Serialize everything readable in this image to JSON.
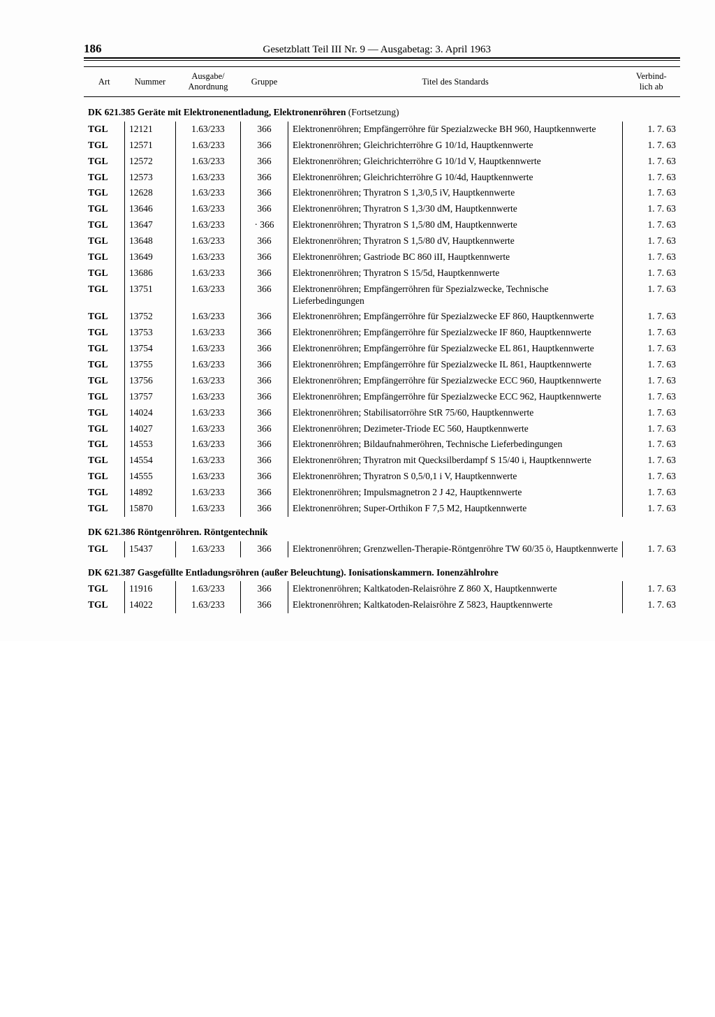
{
  "page_number": "186",
  "page_title": "Gesetzblatt Teil III Nr. 9 — Ausgabetag: 3. April 1963",
  "columns": {
    "art": "Art",
    "nummer": "Nummer",
    "ausgabe": "Ausgabe/\nAnordnung",
    "gruppe": "Gruppe",
    "titel": "Titel des Standards",
    "verbindlich": "Verbind-\nlich ab"
  },
  "sections": [
    {
      "heading": "DK 621.385 Geräte mit Elektronenentladung, Elektronenröhren",
      "continuation": "(Fortsetzung)",
      "rows": [
        {
          "art": "TGL",
          "num": "12121",
          "aus": "1.63/233",
          "grp": "366",
          "title": "Elektronenröhren; Empfängerröhre für Spezialzwecke BH 960, Hauptkennwerte",
          "date": "1.  7. 63"
        },
        {
          "art": "TGL",
          "num": "12571",
          "aus": "1.63/233",
          "grp": "366",
          "title": "Elektronenröhren; Gleichrichterröhre G 10/1d, Hauptkennwerte",
          "date": "1.  7. 63"
        },
        {
          "art": "TGL",
          "num": "12572",
          "aus": "1.63/233",
          "grp": "366",
          "title": "Elektronenröhren; Gleichrichterröhre G 10/1d V, Hauptkennwerte",
          "date": "1.  7. 63"
        },
        {
          "art": "TGL",
          "num": "12573",
          "aus": "1.63/233",
          "grp": "366",
          "title": "Elektronenröhren; Gleichrichterröhre G 10/4d, Hauptkennwerte",
          "date": "1.  7. 63"
        },
        {
          "art": "TGL",
          "num": "12628",
          "aus": "1.63/233",
          "grp": "366",
          "title": "Elektronenröhren; Thyratron S 1,3/0,5 iV, Hauptkennwerte",
          "date": "1.  7. 63"
        },
        {
          "art": "TGL",
          "num": "13646",
          "aus": "1.63/233",
          "grp": "366",
          "title": "Elektronenröhren; Thyratron S 1,3/30 dM, Hauptkennwerte",
          "date": "1.  7. 63"
        },
        {
          "art": "TGL",
          "num": "13647",
          "aus": "1.63/233",
          "grp": "· 366",
          "title": "Elektronenröhren; Thyratron S 1,5/80 dM, Hauptkennwerte",
          "date": "1.  7. 63"
        },
        {
          "art": "TGL",
          "num": "13648",
          "aus": "1.63/233",
          "grp": "366",
          "title": "Elektronenröhren; Thyratron S 1,5/80 dV, Hauptkennwerte",
          "date": "1.  7. 63"
        },
        {
          "art": "TGL",
          "num": "13649",
          "aus": "1.63/233",
          "grp": "366",
          "title": "Elektronenröhren; Gastriode BC 860 iII, Hauptkennwerte",
          "date": "1.  7. 63"
        },
        {
          "art": "TGL",
          "num": "13686",
          "aus": "1.63/233",
          "grp": "366",
          "title": "Elektronenröhren; Thyratron S 15/5d, Hauptkennwerte",
          "date": "1.  7. 63"
        },
        {
          "art": "TGL",
          "num": "13751",
          "aus": "1.63/233",
          "grp": "366",
          "title": "Elektronenröhren; Empfängerröhren für Spezialzwecke, Technische Lieferbedingungen",
          "date": "1.  7. 63"
        },
        {
          "art": "TGL",
          "num": "13752",
          "aus": "1.63/233",
          "grp": "366",
          "title": "Elektronenröhren; Empfängerröhre für Spezialzwecke EF 860, Hauptkennwerte",
          "date": "1.  7. 63"
        },
        {
          "art": "TGL",
          "num": "13753",
          "aus": "1.63/233",
          "grp": "366",
          "title": "Elektronenröhren; Empfängerröhre für Spezialzwecke IF 860, Hauptkennwerte",
          "date": "1.  7. 63"
        },
        {
          "art": "TGL",
          "num": "13754",
          "aus": "1.63/233",
          "grp": "366",
          "title": "Elektronenröhren; Empfängerröhre für Spezialzwecke EL 861, Hauptkennwerte",
          "date": "1.  7. 63"
        },
        {
          "art": "TGL",
          "num": "13755",
          "aus": "1.63/233",
          "grp": "366",
          "title": "Elektronenröhren; Empfängerröhre für Spezialzwecke IL 861, Hauptkennwerte",
          "date": "1.  7. 63"
        },
        {
          "art": "TGL",
          "num": "13756",
          "aus": "1.63/233",
          "grp": "366",
          "title": "Elektronenröhren; Empfängerröhre für Spezialzwecke ECC 960, Hauptkennwerte",
          "date": "1.  7. 63"
        },
        {
          "art": "TGL",
          "num": "13757",
          "aus": "1.63/233",
          "grp": "366",
          "title": "Elektronenröhren; Empfängerröhre für Spezialzwecke ECC 962, Hauptkennwerte",
          "date": "1.  7. 63"
        },
        {
          "art": "TGL",
          "num": "14024",
          "aus": "1.63/233",
          "grp": "366",
          "title": "Elektronenröhren; Stabilisatorröhre StR 75/60, Hauptkennwerte",
          "date": "1.  7. 63"
        },
        {
          "art": "TGL",
          "num": "14027",
          "aus": "1.63/233",
          "grp": "366",
          "title": "Elektronenröhren; Dezimeter-Triode EC 560, Hauptkennwerte",
          "date": "1.  7. 63"
        },
        {
          "art": "TGL",
          "num": "14553",
          "aus": "1.63/233",
          "grp": "366",
          "title": "Elektronenröhren; Bildaufnahmeröhren, Technische Lieferbedingungen",
          "date": "1.  7. 63"
        },
        {
          "art": "TGL",
          "num": "14554",
          "aus": "1.63/233",
          "grp": "366",
          "title": "Elektronenröhren; Thyratron mit Quecksilberdampf S 15/40 i, Hauptkennwerte",
          "date": "1.  7. 63"
        },
        {
          "art": "TGL",
          "num": "14555",
          "aus": "1.63/233",
          "grp": "366",
          "title": "Elektronenröhren; Thyratron S 0,5/0,1 i V, Hauptkennwerte",
          "date": "1.  7. 63"
        },
        {
          "art": "TGL",
          "num": "14892",
          "aus": "1.63/233",
          "grp": "366",
          "title": "Elektronenröhren; Impulsmagnetron 2 J 42, Hauptkennwerte",
          "date": "1.  7. 63"
        },
        {
          "art": "TGL",
          "num": "15870",
          "aus": "1.63/233",
          "grp": "366",
          "title": "Elektronenröhren; Super-Orthikon F 7,5 M2, Hauptkennwerte",
          "date": "1.  7. 63"
        }
      ]
    },
    {
      "heading": "DK 621.386 Röntgenröhren. Röntgentechnik",
      "continuation": "",
      "rows": [
        {
          "art": "TGL",
          "num": "15437",
          "aus": "1.63/233",
          "grp": "366",
          "title": "Elektronenröhren; Grenzwellen-Therapie-Röntgenröhre TW 60/35 ö, Hauptkennwerte",
          "date": "1.  7. 63"
        }
      ]
    },
    {
      "heading": "DK 621.387 Gasgefüllte Entladungsröhren (außer Beleuchtung). Ionisationskammern. Ionenzählrohre",
      "continuation": "",
      "rows": [
        {
          "art": "TGL",
          "num": "11916",
          "aus": "1.63/233",
          "grp": "366",
          "title": "Elektronenröhren; Kaltkatoden-Relaisröhre Z 860 X, Hauptkennwerte",
          "date": "1.  7. 63"
        },
        {
          "art": "TGL",
          "num": "14022",
          "aus": "1.63/233",
          "grp": "366",
          "title": "Elektronenröhren; Kaltkatoden-Relaisröhre Z 5823, Hauptkennwerte",
          "date": "1.  7. 63"
        }
      ]
    }
  ]
}
